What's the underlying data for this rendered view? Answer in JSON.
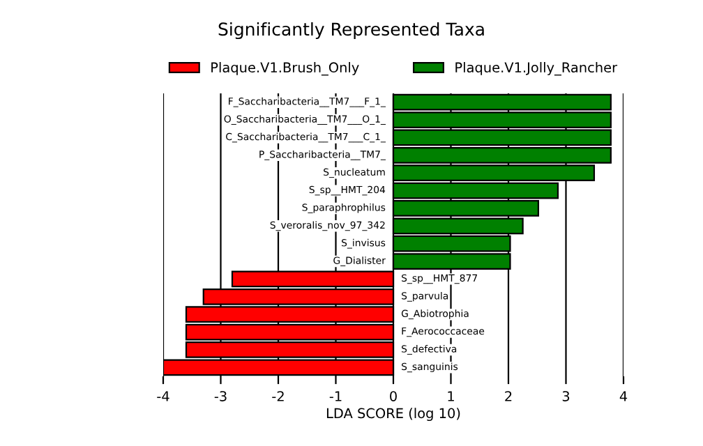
{
  "chart_data": {
    "type": "bar",
    "orientation": "horizontal",
    "title": "Significantly Represented Taxa",
    "xlabel": "LDA SCORE (log 10)",
    "categories": [
      "F_Saccharibacteria__TM7___F_1_",
      "O_Saccharibacteria__TM7___O_1_",
      "C_Saccharibacteria__TM7___C_1_",
      "P_Saccharibacteria__TM7_",
      "S_nucleatum",
      "S_sp__HMT_204",
      "S_paraphrophilus",
      "S_veroralis_nov_97_342",
      "S_invisus",
      "G_Dialister",
      "S_sp__HMT_877",
      "S_parvula",
      "G_Abiotrophia",
      "F_Aerococcaceae",
      "S_defectiva",
      "S_sanguinis"
    ],
    "series": [
      {
        "name": "Plaque.V1.Brush_Only",
        "color": "#ff0000",
        "values": [
          null,
          null,
          null,
          null,
          null,
          null,
          null,
          null,
          null,
          null,
          -2.8,
          -3.3,
          -3.6,
          -3.6,
          -3.6,
          -4.0
        ]
      },
      {
        "name": "Plaque.V1.Jolly_Rancher",
        "color": "#008000",
        "values": [
          3.78,
          3.78,
          3.78,
          3.78,
          3.49,
          2.86,
          2.52,
          2.25,
          2.03,
          2.03,
          null,
          null,
          null,
          null,
          null,
          null
        ]
      }
    ],
    "xlim": [
      -4,
      4
    ],
    "xticks": [
      -4,
      -3,
      -2,
      -1,
      0,
      1,
      2,
      3,
      4
    ],
    "grid": "x",
    "legend": "top",
    "tick_labels": "x"
  }
}
